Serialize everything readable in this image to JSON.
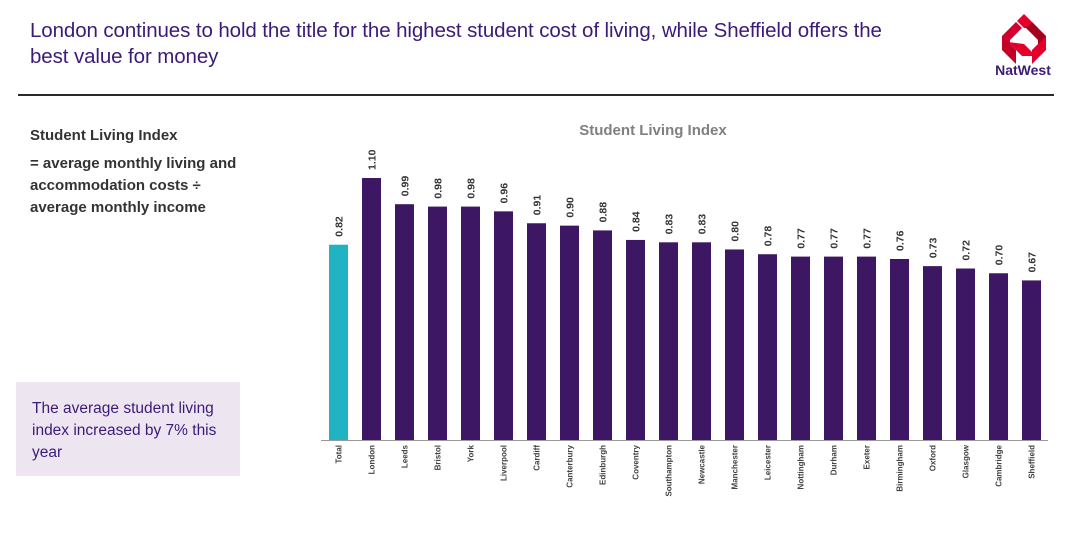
{
  "header": {
    "headline": "London continues to hold the title for the highest student cost of living, while Sheffield offers the best value for money",
    "brand": "NatWest",
    "brand_colors": [
      "#d2002e",
      "#e4002b",
      "#a6001f"
    ]
  },
  "definition": {
    "title": "Student Living Index",
    "body": "= average monthly living and accommodation costs ÷ average monthly income"
  },
  "callout": {
    "text": "The average student living index increased by 7% this year"
  },
  "chart_data": {
    "type": "bar",
    "title": "Student Living Index",
    "xlabel": "",
    "ylabel": "",
    "ylim": [
      0,
      1.1
    ],
    "grid": false,
    "categories": [
      "Total",
      "London",
      "Leeds",
      "Bristol",
      "York",
      "Liverpool",
      "Cardiff",
      "Canterbury",
      "Edinburgh",
      "Coventry",
      "Southampton",
      "Newcastle",
      "Manchester",
      "Leicester",
      "Nottingham",
      "Durham",
      "Exeter",
      "Birmingham",
      "Oxford",
      "Glasgow",
      "Cambridge",
      "Sheffield"
    ],
    "values": [
      0.82,
      1.1,
      0.99,
      0.98,
      0.98,
      0.96,
      0.91,
      0.9,
      0.88,
      0.84,
      0.83,
      0.83,
      0.8,
      0.78,
      0.77,
      0.77,
      0.77,
      0.76,
      0.73,
      0.72,
      0.7,
      0.67
    ],
    "value_labels": [
      "0.82",
      "1.10",
      "0.99",
      "0.98",
      "0.98",
      "0.96",
      "0.91",
      "0.90",
      "0.88",
      "0.84",
      "0.83",
      "0.83",
      "0.80",
      "0.78",
      "0.77",
      "0.77",
      "0.77",
      "0.76",
      "0.73",
      "0.72",
      "0.70",
      "0.67"
    ],
    "colors": {
      "highlight": "#1fb3c3",
      "default": "#3d1763",
      "axis": "#999999",
      "label": "#333333"
    }
  }
}
